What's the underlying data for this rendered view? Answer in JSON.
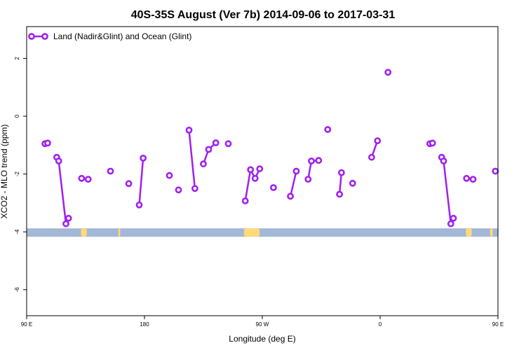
{
  "chart_data": {
    "type": "line",
    "title": "40S-35S August (Ver 7b)   2014-09-06 to 2017-03-31",
    "xlabel": "Longitude (deg E)",
    "ylabel": "XCO2 - MLO trend (ppm)",
    "xlim": [
      90,
      450
    ],
    "ylim": [
      -6.9,
      3.1
    ],
    "x_ticks": [
      {
        "value": 90,
        "label": "90 E"
      },
      {
        "value": 180,
        "label": "180"
      },
      {
        "value": 270,
        "label": "90 W"
      },
      {
        "value": 360,
        "label": "0"
      },
      {
        "value": 450,
        "label": "90 E"
      },
      {
        "value": 540,
        "label": "180"
      }
    ],
    "y_ticks": [
      {
        "value": -6,
        "label": "-6"
      },
      {
        "value": -4,
        "label": "-4"
      },
      {
        "value": -2,
        "label": "-2"
      },
      {
        "value": 0,
        "label": "0"
      },
      {
        "value": 2,
        "label": "2"
      }
    ],
    "legend": {
      "position": "top-left",
      "label": "Land (Nadir&Glint) and Ocean (Glint)"
    },
    "series_color": "#a020f0",
    "band_color": "#a3b7d6",
    "land_color": "#ffd97a",
    "band_y": -4,
    "segments": [
      [
        [
          104,
          -0.95
        ],
        [
          106,
          -0.93
        ]
      ],
      [
        [
          113,
          -1.42
        ],
        [
          114.5,
          -1.55
        ],
        [
          120,
          -3.72
        ],
        [
          122,
          -3.53
        ]
      ],
      [
        [
          132,
          -2.15
        ]
      ],
      [
        [
          137,
          -2.18
        ]
      ],
      [
        [
          154,
          -1.9
        ]
      ],
      [
        [
          168,
          -2.33
        ]
      ],
      [
        [
          176,
          -3.07
        ],
        [
          179,
          -1.45
        ]
      ],
      [
        [
          199,
          -2.05
        ]
      ],
      [
        [
          206,
          -2.55
        ]
      ],
      [
        [
          214,
          -0.48
        ],
        [
          218.5,
          -2.5
        ]
      ],
      [
        [
          225,
          -1.65
        ],
        [
          229,
          -1.15
        ],
        [
          234.5,
          -0.92
        ]
      ],
      [
        [
          244,
          -0.95
        ]
      ],
      [
        [
          257,
          -2.93
        ],
        [
          261,
          -1.85
        ],
        [
          264.5,
          -2.15
        ],
        [
          268,
          -1.82
        ]
      ],
      [
        [
          278.5,
          -2.47
        ]
      ],
      [
        [
          291.5,
          -2.77
        ],
        [
          296,
          -1.9
        ]
      ],
      [
        [
          305,
          -2.18
        ],
        [
          307.5,
          -1.55
        ],
        [
          313,
          -1.53
        ]
      ],
      [
        [
          320,
          -0.46
        ]
      ],
      [
        [
          329,
          -2.7
        ],
        [
          330.5,
          -1.95
        ]
      ],
      [
        [
          339,
          -2.32
        ]
      ],
      [
        [
          353.5,
          -1.42
        ],
        [
          358,
          -0.85
        ]
      ],
      [
        [
          366,
          1.52
        ]
      ],
      [
        [
          398,
          -0.95
        ],
        [
          400,
          -0.93
        ]
      ],
      [
        [
          407,
          -1.42
        ],
        [
          408.5,
          -1.55
        ],
        [
          414,
          -3.72
        ],
        [
          416,
          -3.53
        ]
      ],
      [
        [
          426,
          -2.15
        ]
      ],
      [
        [
          431,
          -2.18
        ]
      ],
      [
        [
          448,
          -1.9
        ]
      ]
    ],
    "land_patches": [
      {
        "x0": 131.5,
        "x1": 136
      },
      {
        "x0": 160,
        "x1": 161.5
      },
      {
        "x0": 256,
        "x1": 268
      },
      {
        "x0": 425.5,
        "x1": 430
      },
      {
        "x0": 444,
        "x1": 446
      }
    ]
  }
}
